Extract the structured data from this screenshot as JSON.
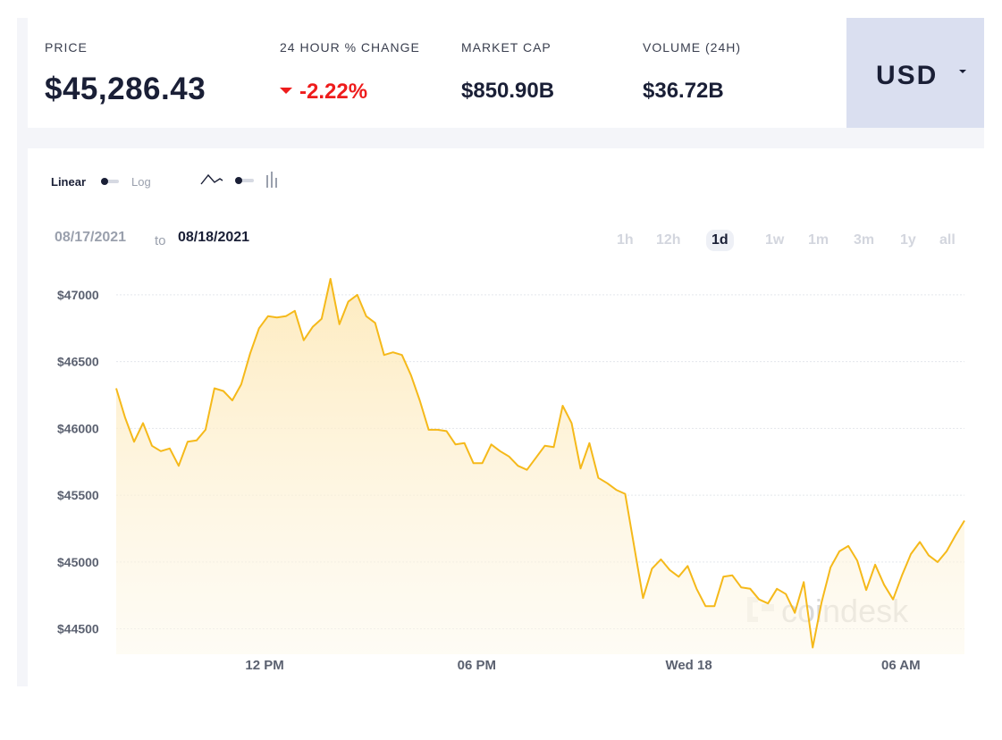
{
  "stats": {
    "price_label": "PRICE",
    "price_value": "$45,286.43",
    "change_label": "24 HOUR % CHANGE",
    "change_value": "-2.22%",
    "change_direction": "down",
    "market_cap_label": "MARKET CAP",
    "market_cap_value": "$850.90B",
    "volume_label": "VOLUME (24H)",
    "volume_value": "$36.72B"
  },
  "currency": {
    "label": "USD",
    "icon": "caret-down-icon"
  },
  "controls": {
    "linear_label": "Linear",
    "log_label": "Log",
    "scale_selected": "Linear",
    "chart_style_selected": "line",
    "line_icon": "line-chart-icon",
    "bar_icon": "bar-chart-icon"
  },
  "date_range": {
    "from": "08/17/2021",
    "to_word": "to",
    "to": "08/18/2021"
  },
  "ranges": [
    "1h",
    "12h",
    "1d",
    "1w",
    "1m",
    "3m",
    "1y",
    "all"
  ],
  "active_range": "1d",
  "watermark": "coindesk",
  "colors": {
    "line": "#f5b91a",
    "fill": "#fdf1d2",
    "negative": "#ee1c1c",
    "accent_panel": "#dadff0"
  },
  "chart_data": {
    "type": "area",
    "title": "",
    "xlabel": "",
    "ylabel": "",
    "ylim": [
      44310,
      47200
    ],
    "yticks": [
      "$47000",
      "$46500",
      "$46000",
      "$45500",
      "$45000",
      "$44500"
    ],
    "ytick_values": [
      47000,
      46500,
      46000,
      45500,
      45000,
      44500
    ],
    "xticks": [
      "12 PM",
      "06 PM",
      "Wed 18",
      "06 AM"
    ],
    "xtick_hours": [
      4.2,
      10.2,
      16.2,
      22.2
    ],
    "x_hours_range": [
      0,
      24
    ],
    "grid": true,
    "series": [
      {
        "values": [
          46300,
          46080,
          45900,
          46040,
          45870,
          45830,
          45850,
          45720,
          45900,
          45910,
          45990,
          46300,
          46280,
          46210,
          46330,
          46560,
          46750,
          46840,
          46830,
          46840,
          46880,
          46660,
          46760,
          46820,
          47120,
          46780,
          46950,
          47000,
          46840,
          46790,
          46550,
          46570,
          46550,
          46400,
          46210,
          45990,
          45990,
          45980,
          45880,
          45890,
          45740,
          45740,
          45880,
          45830,
          45790,
          45720,
          45690,
          45780,
          45870,
          45860,
          46170,
          46040,
          45700,
          45890,
          45630,
          45590,
          45540,
          45510,
          45120,
          44730,
          44950,
          45020,
          44940,
          44890,
          44970,
          44800,
          44670,
          44670,
          44890,
          44900,
          44810,
          44800,
          44720,
          44690,
          44800,
          44760,
          44620,
          44850,
          44360,
          44700,
          44960,
          45080,
          45120,
          45010,
          44790,
          44980,
          44830,
          44720,
          44900,
          45060,
          45150,
          45050,
          45000,
          45080,
          45200,
          45310
        ]
      }
    ]
  }
}
